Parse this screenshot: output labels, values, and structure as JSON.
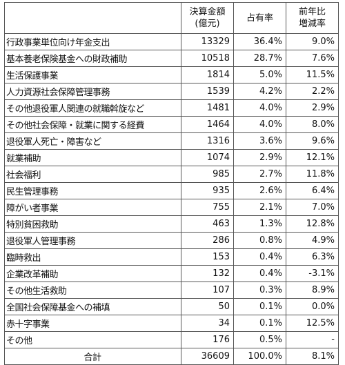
{
  "header": {
    "blank": "",
    "amount_line1": "決算金額",
    "amount_line2": "(億元)",
    "share": "占有率",
    "yoy_line1": "前年比",
    "yoy_line2": "増減率"
  },
  "rows": [
    {
      "name": "行政事業単位向け年金支出",
      "amount": "13329",
      "share": "36.4%",
      "yoy": "9.0%"
    },
    {
      "name": "基本養老保険基金への財政補助",
      "amount": "10518",
      "share": "28.7%",
      "yoy": "7.6%"
    },
    {
      "name": "生活保護事業",
      "amount": "1814",
      "share": "5.0%",
      "yoy": "11.5%"
    },
    {
      "name": "人力資源社会保障管理事務",
      "amount": "1539",
      "share": "4.2%",
      "yoy": "2.2%"
    },
    {
      "name": "その他退役軍人関連の就職斡旋など",
      "amount": "1481",
      "share": "4.0%",
      "yoy": "2.9%"
    },
    {
      "name": "その他社会保障・就業に関する経費",
      "amount": "1464",
      "share": "4.0%",
      "yoy": "8.0%"
    },
    {
      "name": "退役軍人死亡・障害など",
      "amount": "1316",
      "share": "3.6%",
      "yoy": "9.6%"
    },
    {
      "name": "就業補助",
      "amount": "1074",
      "share": "2.9%",
      "yoy": "12.1%"
    },
    {
      "name": "社会福利",
      "amount": "985",
      "share": "2.7%",
      "yoy": "11.8%"
    },
    {
      "name": "民生管理事務",
      "amount": "935",
      "share": "2.6%",
      "yoy": "6.4%"
    },
    {
      "name": "障がい者事業",
      "amount": "755",
      "share": "2.1%",
      "yoy": "7.0%"
    },
    {
      "name": "特別貧困救助",
      "amount": "463",
      "share": "1.3%",
      "yoy": "12.8%"
    },
    {
      "name": "退役軍人管理事務",
      "amount": "286",
      "share": "0.8%",
      "yoy": "4.9%"
    },
    {
      "name": "臨時救出",
      "amount": "153",
      "share": "0.4%",
      "yoy": "6.3%"
    },
    {
      "name": "企業改革補助",
      "amount": "132",
      "share": "0.4%",
      "yoy": "-3.1%"
    },
    {
      "name": "その他生活救助",
      "amount": "107",
      "share": "0.3%",
      "yoy": "8.9%"
    },
    {
      "name": "全国社会保障基金への補填",
      "amount": "50",
      "share": "0.1%",
      "yoy": "0.0%"
    },
    {
      "name": "赤十字事業",
      "amount": "34",
      "share": "0.1%",
      "yoy": "12.5%"
    },
    {
      "name": "その他",
      "amount": "176",
      "share": "0.5%",
      "yoy": "-"
    }
  ],
  "total": {
    "name": "合計",
    "amount": "36609",
    "share": "100.0%",
    "yoy": "8.1%"
  }
}
